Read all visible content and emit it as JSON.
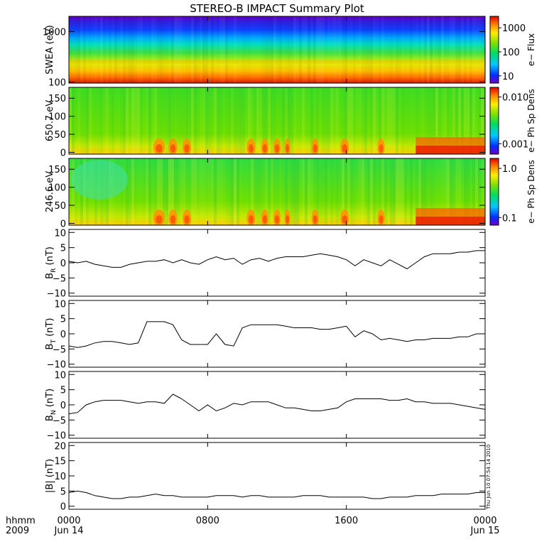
{
  "title": "STEREO-B IMPACT Summary Plot",
  "footer": {
    "corner_top": "hhmm",
    "corner_bottom": "2009",
    "x_ticks": [
      {
        "hour": 0,
        "label": "0000",
        "sub": "Jun 14"
      },
      {
        "hour": 8,
        "label": "0800",
        "sub": ""
      },
      {
        "hour": 16,
        "label": "1600",
        "sub": ""
      },
      {
        "hour": 24,
        "label": "0000",
        "sub": "Jun 15"
      }
    ],
    "timestamp": "Thu Jun 10 07:54:14 2010"
  },
  "chart_data": [
    {
      "type": "heatmap",
      "ylabel": "SWEA (eV)",
      "yscale": "log",
      "ylim": [
        95,
        2000
      ],
      "y_ticks": [
        {
          "v": 100,
          "label": "100"
        },
        {
          "v": 1000,
          "label": "1000"
        }
      ],
      "colorbar": {
        "label": "e− Flux",
        "scale": "log",
        "range": [
          5,
          3000
        ],
        "ticks": [
          {
            "v": 10,
            "label": "10"
          },
          {
            "v": 100,
            "label": "100"
          },
          {
            "v": 1000,
            "label": "1000"
          }
        ]
      }
    },
    {
      "type": "heatmap",
      "ylabel": "650.7 eV",
      "ylim": [
        -5,
        180
      ],
      "y_ticks": [
        {
          "v": 0,
          "label": "0"
        },
        {
          "v": 50,
          "label": "50"
        },
        {
          "v": 100,
          "label": "100"
        },
        {
          "v": 150,
          "label": "150"
        }
      ],
      "colorbar": {
        "label": "e− Ph Sp Dens",
        "scale": "log",
        "range": [
          0.0006,
          0.016
        ],
        "ticks": [
          {
            "v": 0.001,
            "label": "0.001"
          },
          {
            "v": 0.01,
            "label": "0.010"
          }
        ]
      }
    },
    {
      "type": "heatmap",
      "ylabel": "246.6 eV",
      "ylim": [
        -5,
        180
      ],
      "y_ticks": [
        {
          "v": 0,
          "label": "0"
        },
        {
          "v": 50,
          "label": "50"
        },
        {
          "v": 100,
          "label": "100"
        },
        {
          "v": 150,
          "label": "150"
        }
      ],
      "colorbar": {
        "label": "e− Ph Sp Dens",
        "scale": "log",
        "range": [
          0.07,
          1.6
        ],
        "ticks": [
          {
            "v": 0.1,
            "label": "0.1"
          },
          {
            "v": 1.0,
            "label": "1.0"
          }
        ]
      }
    },
    {
      "type": "line",
      "ylabel_main": "B",
      "ylabel_sub": "R",
      "ylabel_unit": " (nT)",
      "ylim": [
        -11,
        11
      ],
      "y_ticks": [
        {
          "v": -10,
          "label": "−10"
        },
        {
          "v": -5,
          "label": "−5"
        },
        {
          "v": 0,
          "label": "0"
        },
        {
          "v": 5,
          "label": "5"
        },
        {
          "v": 10,
          "label": "10"
        }
      ],
      "series": [
        {
          "x": [
            0,
            0.5,
            1,
            1.5,
            2,
            2.5,
            3,
            3.5,
            4,
            4.5,
            5,
            5.5,
            6,
            6.5,
            7,
            7.5,
            8,
            8.5,
            9,
            9.5,
            10,
            10.5,
            11,
            11.5,
            12,
            12.5,
            13,
            13.5,
            14,
            14.5,
            15,
            15.5,
            16,
            16.5,
            17,
            17.5,
            18,
            18.5,
            19,
            19.5,
            20,
            20.5,
            21,
            21.5,
            22,
            22.5,
            23,
            23.5,
            24
          ],
          "y": [
            0.5,
            0,
            0.5,
            -0.5,
            -1,
            -1.5,
            -1.5,
            -0.5,
            0,
            0.5,
            0.5,
            1,
            0,
            1,
            0,
            -0.5,
            1,
            2,
            1,
            1.5,
            -0.5,
            1,
            1.5,
            0.5,
            1.5,
            2,
            2,
            2,
            2.5,
            3,
            2.5,
            2,
            1,
            -1,
            1,
            0,
            -1,
            1,
            -0.5,
            -2,
            0,
            2,
            3,
            3,
            3,
            3.5,
            3.5,
            4,
            4
          ]
        }
      ]
    },
    {
      "type": "line",
      "ylabel_main": "B",
      "ylabel_sub": "T",
      "ylabel_unit": " (nT)",
      "ylim": [
        -11,
        11
      ],
      "y_ticks": [
        {
          "v": -10,
          "label": "−10"
        },
        {
          "v": -5,
          "label": "−5"
        },
        {
          "v": 0,
          "label": "0"
        },
        {
          "v": 5,
          "label": "5"
        },
        {
          "v": 10,
          "label": "10"
        }
      ],
      "series": [
        {
          "x": [
            0,
            0.5,
            1,
            1.5,
            2,
            2.5,
            3,
            3.5,
            4,
            4.5,
            5,
            5.5,
            6,
            6.5,
            7,
            7.5,
            8,
            8.5,
            9,
            9.5,
            10,
            10.5,
            11,
            11.5,
            12,
            12.5,
            13,
            13.5,
            14,
            14.5,
            15,
            15.5,
            16,
            16.5,
            17,
            17.5,
            18,
            18.5,
            19,
            19.5,
            20,
            20.5,
            21,
            21.5,
            22,
            22.5,
            23,
            23.5,
            24
          ],
          "y": [
            -4,
            -4.5,
            -4,
            -3,
            -2.5,
            -2.5,
            -3,
            -3.5,
            -3,
            4,
            4,
            4,
            3,
            -2,
            -3.5,
            -3.5,
            -3.5,
            0,
            -3.5,
            -4,
            2,
            3,
            3,
            3,
            3,
            2.5,
            2,
            2,
            2,
            1.5,
            1.5,
            2,
            2.5,
            -1,
            1,
            0,
            -2,
            -1.5,
            -2,
            -2.5,
            -2,
            -2,
            -1.5,
            -1.5,
            -1.5,
            -1,
            -1,
            0,
            0
          ]
        }
      ]
    },
    {
      "type": "line",
      "ylabel_main": "B",
      "ylabel_sub": "N",
      "ylabel_unit": " (nT)",
      "ylim": [
        -11,
        11
      ],
      "y_ticks": [
        {
          "v": -10,
          "label": "−10"
        },
        {
          "v": -5,
          "label": "−5"
        },
        {
          "v": 0,
          "label": "0"
        },
        {
          "v": 5,
          "label": "5"
        },
        {
          "v": 10,
          "label": "10"
        }
      ],
      "series": [
        {
          "x": [
            0,
            0.5,
            1,
            1.5,
            2,
            2.5,
            3,
            3.5,
            4,
            4.5,
            5,
            5.5,
            6,
            6.5,
            7,
            7.5,
            8,
            8.5,
            9,
            9.5,
            10,
            10.5,
            11,
            11.5,
            12,
            12.5,
            13,
            13.5,
            14,
            14.5,
            15,
            15.5,
            16,
            16.5,
            17,
            17.5,
            18,
            18.5,
            19,
            19.5,
            20,
            20.5,
            21,
            21.5,
            22,
            22.5,
            23,
            23.5,
            24
          ],
          "y": [
            -3,
            -2.5,
            0,
            1,
            1.5,
            1.5,
            1.5,
            1,
            0.5,
            1,
            1,
            0.5,
            3.5,
            2,
            0,
            -2,
            0,
            -2,
            -1,
            0.5,
            0,
            1,
            1,
            1,
            0,
            -1,
            -1,
            -1.5,
            -2,
            -2,
            -1.5,
            -1,
            1,
            2,
            2,
            2,
            2,
            1.5,
            1.5,
            2,
            1,
            1,
            0.5,
            0.5,
            0.5,
            0,
            -0.5,
            -1,
            -1.5
          ]
        }
      ]
    },
    {
      "type": "line",
      "ylabel": "|B| (nT)",
      "ylim": [
        -1,
        21
      ],
      "y_ticks": [
        {
          "v": 0,
          "label": "0"
        },
        {
          "v": 5,
          "label": "5"
        },
        {
          "v": 10,
          "label": "10"
        },
        {
          "v": 15,
          "label": "15"
        },
        {
          "v": 20,
          "label": "20"
        }
      ],
      "series": [
        {
          "x": [
            0,
            0.5,
            1,
            1.5,
            2,
            2.5,
            3,
            3.5,
            4,
            4.5,
            5,
            5.5,
            6,
            6.5,
            7,
            7.5,
            8,
            8.5,
            9,
            9.5,
            10,
            10.5,
            11,
            11.5,
            12,
            12.5,
            13,
            13.5,
            14,
            14.5,
            15,
            15.5,
            16,
            16.5,
            17,
            17.5,
            18,
            18.5,
            19,
            19.5,
            20,
            20.5,
            21,
            21.5,
            22,
            22.5,
            23,
            23.5,
            24
          ],
          "y": [
            4.5,
            5,
            4.5,
            3.5,
            3,
            2.5,
            2.5,
            3,
            3,
            3.5,
            4,
            3.5,
            3.5,
            3,
            3,
            3,
            3,
            3.5,
            3.5,
            3.5,
            3,
            3.5,
            3.5,
            3,
            3,
            3,
            3,
            3.5,
            3.5,
            3.5,
            3,
            3,
            3,
            3,
            3,
            2.5,
            2.5,
            3,
            3,
            3,
            3.5,
            3.5,
            3.5,
            4,
            4,
            4,
            4,
            4.5,
            4.5
          ]
        }
      ]
    }
  ]
}
